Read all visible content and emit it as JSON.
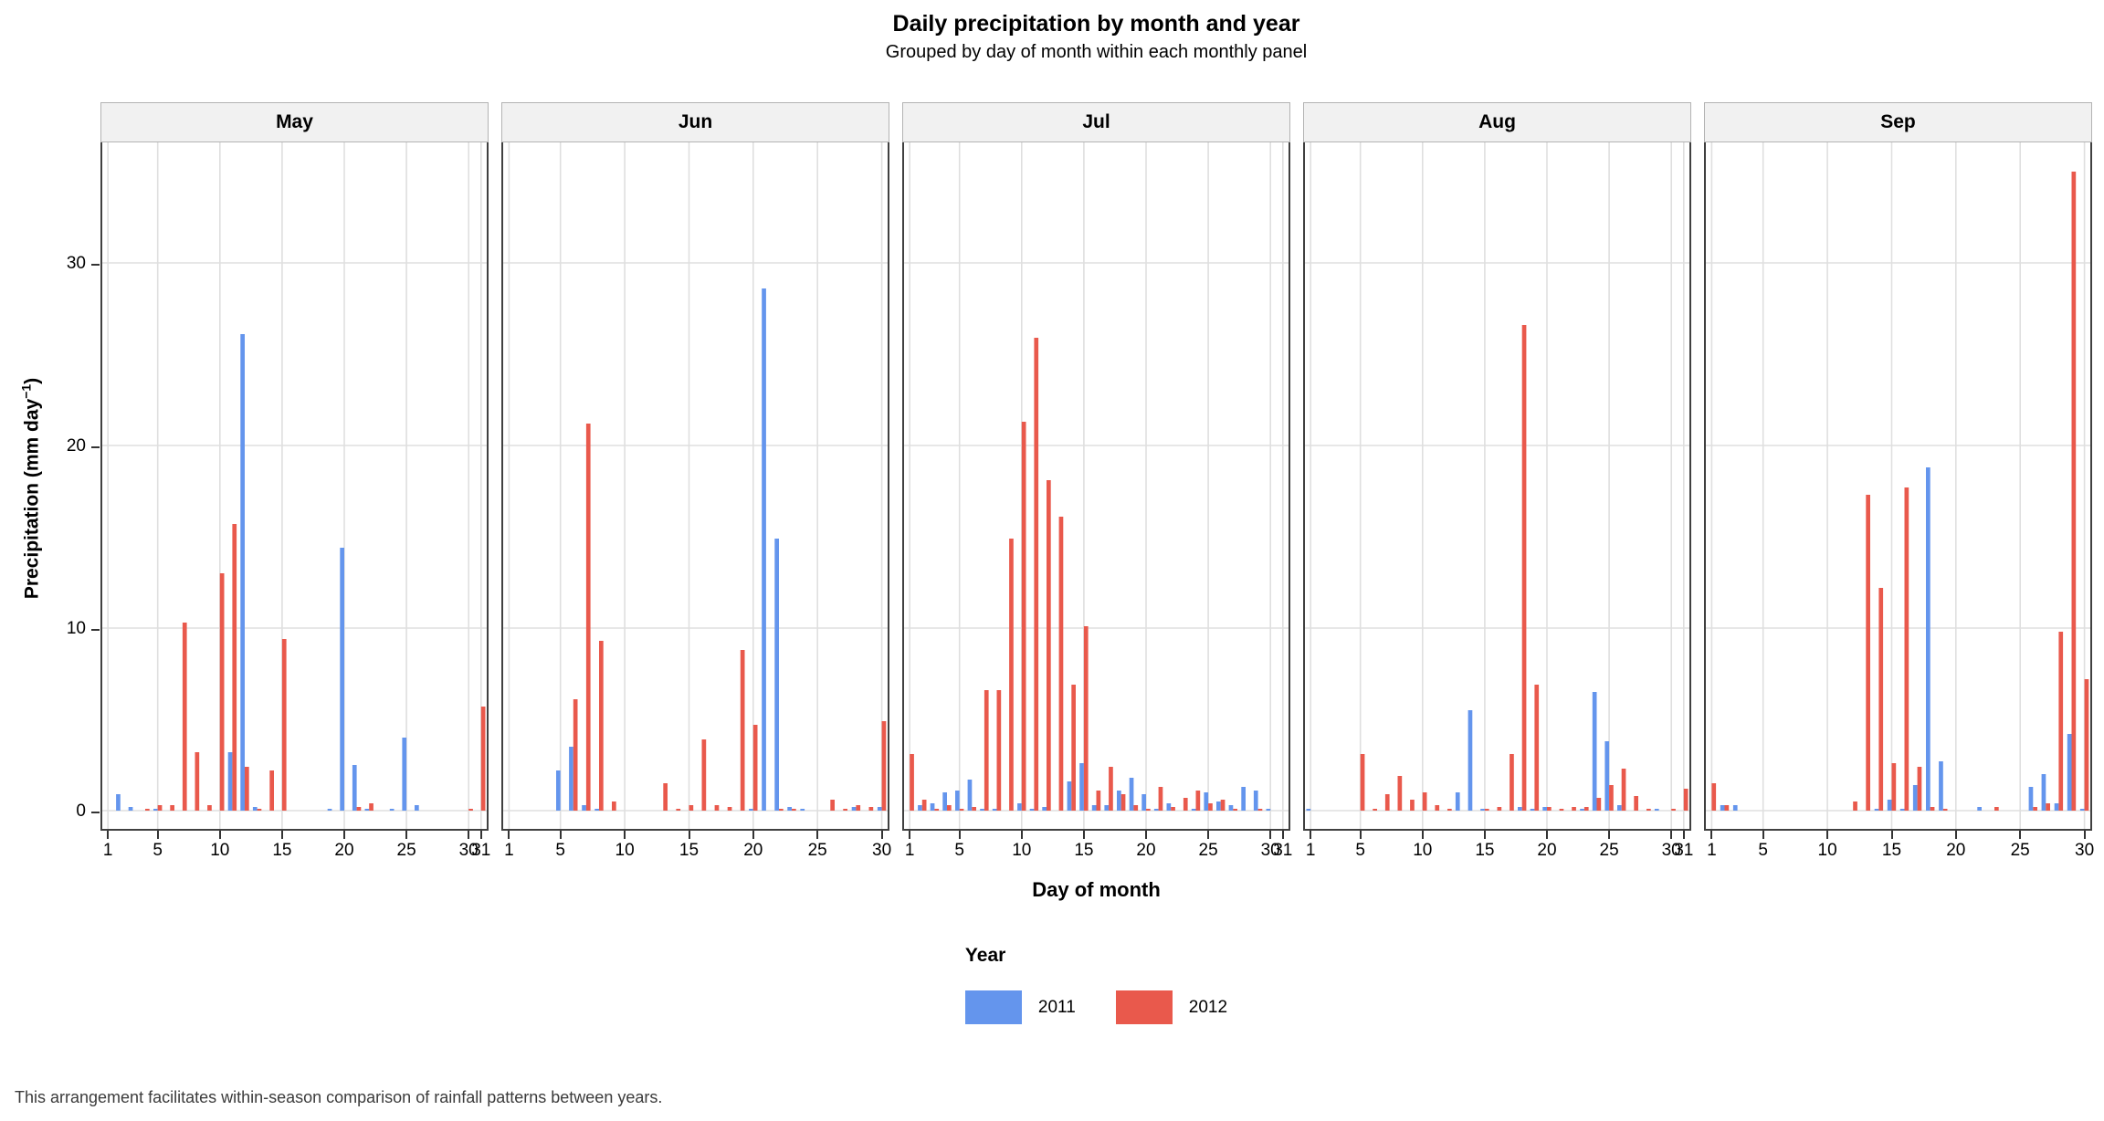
{
  "header": {
    "title": "Daily precipitation by month and year",
    "subtitle": "Grouped by day of month within each monthly panel"
  },
  "axes": {
    "x_label": "Day of month",
    "y_label_main": "Precipitation (mm day",
    "y_label_sup": "−1",
    "y_label_close": ")",
    "y_tick_labels": [
      "0",
      "10",
      "20",
      "30"
    ]
  },
  "legend": {
    "title": "Year",
    "items": [
      {
        "label": "2011",
        "color": "#6495ED"
      },
      {
        "label": "2012",
        "color": "#E9594C"
      }
    ]
  },
  "footer": {
    "note": "This arrangement facilitates within-season comparison of rainfall patterns between years."
  },
  "chart_data": {
    "type": "bar",
    "title": "Daily precipitation by month and year",
    "subtitle": "Grouped by day of month within each monthly panel",
    "xlabel": "Day of month",
    "ylabel": "Precipitation (mm day^-1)",
    "ylim": [
      0,
      36.5
    ],
    "y_breaks": [
      0,
      10,
      20,
      30
    ],
    "x_breaks": [
      1,
      5,
      10,
      15,
      20,
      25,
      30,
      31
    ],
    "grid": "major-only",
    "legend_position": "bottom",
    "facet": "month",
    "series_names": [
      "2011",
      "2012"
    ],
    "colors": {
      "2011": "#6495ED",
      "2012": "#E9594C"
    },
    "panels": [
      {
        "month": "May",
        "days": 31,
        "values": {
          "2011": {
            "2": 0.9,
            "3": 0.2,
            "5": 0.1,
            "11": 3.2,
            "12": 26.1,
            "13": 0.2,
            "19": 0.1,
            "20": 14.4,
            "21": 2.5,
            "22": 0.1,
            "24": 0.1,
            "25": 4.0,
            "26": 0.3
          },
          "2012": {
            "4": 0.1,
            "5": 0.3,
            "6": 0.3,
            "7": 10.3,
            "8": 3.2,
            "9": 0.3,
            "10": 13.0,
            "11": 15.7,
            "12": 2.4,
            "13": 0.1,
            "14": 2.2,
            "15": 9.4,
            "21": 0.2,
            "22": 0.4,
            "30": 0.1,
            "31": 5.7
          }
        }
      },
      {
        "month": "Jun",
        "days": 30,
        "values": {
          "2011": {
            "5": 2.2,
            "6": 3.5,
            "7": 0.3,
            "8": 0.1,
            "20": 0.1,
            "21": 28.6,
            "22": 14.9,
            "23": 0.2,
            "24": 0.1,
            "28": 0.2,
            "30": 0.2
          },
          "2012": {
            "6": 6.1,
            "7": 21.2,
            "8": 9.3,
            "9": 0.5,
            "13": 1.5,
            "14": 0.1,
            "15": 0.3,
            "16": 3.9,
            "17": 0.3,
            "18": 0.2,
            "19": 8.8,
            "20": 4.7,
            "22": 0.1,
            "23": 0.1,
            "26": 0.6,
            "27": 0.1,
            "28": 0.3,
            "29": 0.2,
            "30": 4.9
          }
        }
      },
      {
        "month": "Jul",
        "days": 31,
        "values": {
          "2011": {
            "2": 0.3,
            "3": 0.4,
            "4": 1.0,
            "5": 1.1,
            "6": 1.7,
            "7": 0.1,
            "8": 0.1,
            "10": 0.4,
            "11": 0.1,
            "12": 0.2,
            "14": 1.6,
            "15": 2.6,
            "16": 0.3,
            "17": 0.3,
            "18": 1.1,
            "19": 1.8,
            "20": 0.9,
            "21": 0.1,
            "22": 0.4,
            "24": 0.1,
            "25": 1.0,
            "26": 0.5,
            "27": 0.3,
            "28": 1.3,
            "29": 1.1,
            "30": 0.1
          },
          "2012": {
            "1": 3.1,
            "2": 0.6,
            "3": 0.1,
            "4": 0.3,
            "5": 0.1,
            "6": 0.2,
            "7": 6.6,
            "8": 6.6,
            "9": 14.9,
            "10": 21.3,
            "11": 25.9,
            "12": 18.1,
            "13": 16.1,
            "14": 6.9,
            "15": 10.1,
            "16": 1.1,
            "17": 2.4,
            "18": 0.9,
            "19": 0.3,
            "20": 0.1,
            "21": 1.3,
            "22": 0.2,
            "23": 0.7,
            "24": 1.1,
            "25": 0.4,
            "26": 0.6,
            "27": 0.1,
            "29": 0.1
          }
        }
      },
      {
        "month": "Aug",
        "days": 31,
        "values": {
          "2011": {
            "1": 0.1,
            "13": 1.0,
            "14": 5.5,
            "15": 0.1,
            "18": 0.2,
            "19": 0.1,
            "20": 0.2,
            "23": 0.1,
            "24": 6.5,
            "25": 3.8,
            "26": 0.3,
            "29": 0.1
          },
          "2012": {
            "5": 3.1,
            "6": 0.1,
            "7": 0.9,
            "8": 1.9,
            "9": 0.6,
            "10": 1.0,
            "11": 0.3,
            "12": 0.1,
            "15": 0.1,
            "16": 0.2,
            "17": 3.1,
            "18": 26.6,
            "19": 6.9,
            "20": 0.2,
            "21": 0.1,
            "22": 0.2,
            "23": 0.2,
            "24": 0.7,
            "25": 1.4,
            "26": 2.3,
            "27": 0.8,
            "28": 0.1,
            "30": 0.1,
            "31": 1.2
          }
        }
      },
      {
        "month": "Sep",
        "days": 30,
        "values": {
          "2011": {
            "2": 0.3,
            "3": 0.3,
            "14": 0.1,
            "15": 0.6,
            "16": 0.1,
            "17": 1.4,
            "18": 18.8,
            "19": 2.7,
            "22": 0.2,
            "26": 1.3,
            "27": 2.0,
            "28": 0.4,
            "29": 4.2,
            "30": 0.1
          },
          "2012": {
            "1": 1.5,
            "2": 0.3,
            "12": 0.5,
            "13": 17.3,
            "14": 12.2,
            "15": 2.6,
            "16": 17.7,
            "17": 2.4,
            "18": 0.2,
            "19": 0.1,
            "23": 0.2,
            "26": 0.2,
            "27": 0.4,
            "28": 9.8,
            "29": 35.0,
            "30": 7.2
          }
        }
      }
    ]
  }
}
